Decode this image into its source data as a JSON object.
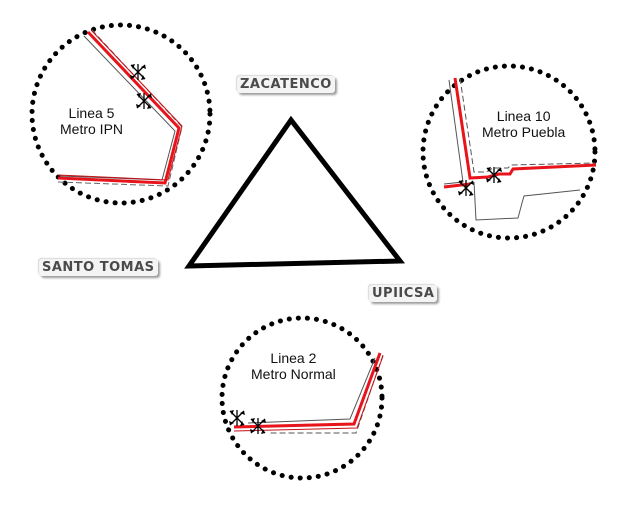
{
  "campuses": {
    "zacatenco": "ZACATENCO",
    "santo_tomas": "SANTO TOMAS",
    "upiicsa": "UPIICSA"
  },
  "stations": {
    "linea5": {
      "line": "Linea 5",
      "name": "Metro IPN"
    },
    "linea10": {
      "line": "Linea 10",
      "name": "Metro Puebla"
    },
    "linea2": {
      "line": "Linea 2",
      "name": "Metro Normal"
    }
  },
  "colors": {
    "metro_line": "#e8141b",
    "road": "#7a7a7a",
    "circle_dots": "#000000",
    "triangle": "#000000"
  },
  "icons": [
    "turnstile-icon"
  ]
}
